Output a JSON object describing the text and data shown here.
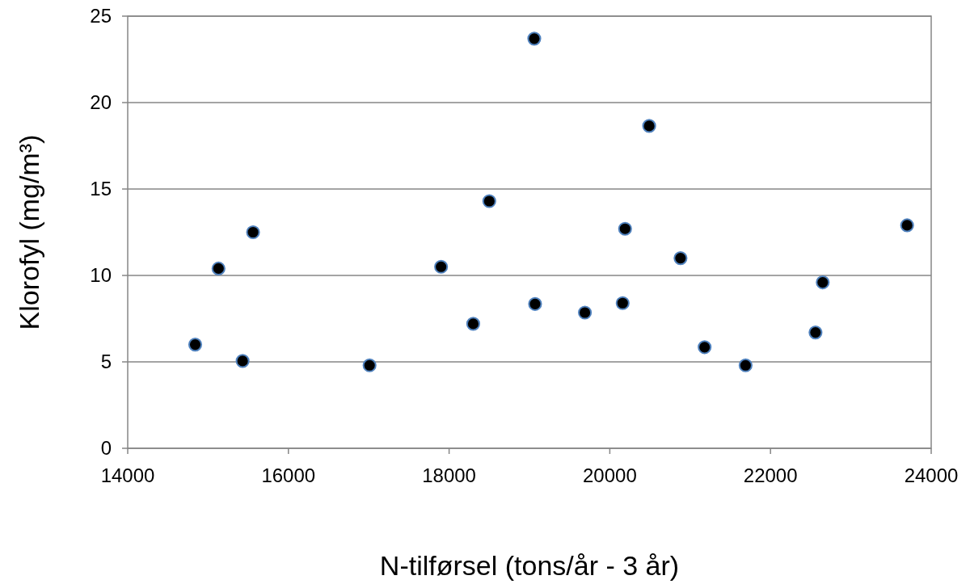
{
  "chart_data": {
    "type": "scatter",
    "xlabel": "N-tilførsel (tons/år - 3 år)",
    "ylabel": "Klorofyl (mg/m³)",
    "x": [
      14840,
      15130,
      15430,
      15560,
      17010,
      17900,
      18300,
      18500,
      19060,
      19070,
      19690,
      20160,
      20190,
      20490,
      20880,
      21180,
      21690,
      22560,
      22650,
      23700
    ],
    "series": [
      {
        "color": "#000000",
        "values": [
          6.0,
          10.4,
          5.05,
          12.5,
          4.8,
          10.5,
          7.2,
          14.3,
          23.7,
          8.35,
          7.85,
          8.4,
          12.7,
          18.65,
          11.0,
          5.85,
          4.8,
          6.7,
          9.6,
          12.9
        ]
      }
    ],
    "xlim": [
      14000,
      24000
    ],
    "xticks": [
      14000,
      16000,
      18000,
      20000,
      22000,
      24000
    ],
    "ylim": [
      0,
      25
    ],
    "yticks": [
      0,
      5,
      10,
      15,
      20,
      25
    ],
    "grid": "y",
    "marker": "circle"
  }
}
